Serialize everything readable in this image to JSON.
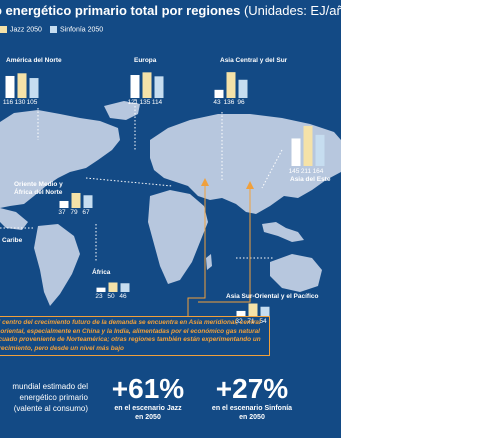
{
  "title": {
    "main": "o energético primario total por regiones",
    "units": "(Unidades: EJ/año)"
  },
  "legend": [
    {
      "label": "Jazz 2050",
      "color": "#f5e2a8"
    },
    {
      "label": "Sinfonía 2050",
      "color": "#c6ddf0"
    }
  ],
  "colors": {
    "background": "#134a85",
    "land": "#b7c7de",
    "accent": "#f0a03c",
    "bar_current": "#ffffff",
    "bar_jazz": "#f5e2a8",
    "bar_sinfonia": "#c6ddf0"
  },
  "chart_data": {
    "type": "bar",
    "title": "o energético primario total por regiones",
    "units": "EJ/año",
    "series_names": [
      "",
      "Jazz 2050",
      "Sinfonía 2050"
    ],
    "regions": [
      {
        "name": "América del Norte",
        "values": [
          116,
          130,
          105
        ]
      },
      {
        "name": "Europa",
        "values": [
          121,
          135,
          114
        ]
      },
      {
        "name": "Asia Central y del Sur",
        "values": [
          43,
          136,
          96
        ]
      },
      {
        "name": "Asia del Este",
        "values": [
          145,
          211,
          164
        ]
      },
      {
        "name": "Oriente Medio y África del Norte",
        "values": [
          37,
          79,
          67
        ]
      },
      {
        "name": "África",
        "values": [
          23,
          50,
          46
        ]
      },
      {
        "name": "Asia Sur-Oriental y el Pacífico",
        "values": [
          32,
          71,
          54
        ]
      },
      {
        "name": "Caribe",
        "values": []
      }
    ]
  },
  "note": "el centro del crecimiento futuro de la demanda se encuentra en Asia meridional, central y oriental, especialmente en China y la India, alimentadas por el económico gas natural licuado proveniente de Norteamérica; otras regiones también están experimentando un crecimiento, pero desde un nivel más bajo",
  "description": "mundial estimado del energético primario (valente al consumo)",
  "stats": [
    {
      "value": "+61%",
      "line1": "en el escenario Jazz",
      "line2": "en 2050"
    },
    {
      "value": "+27%",
      "line1": "en el escenario Sinfonía",
      "line2": "en 2050"
    }
  ]
}
